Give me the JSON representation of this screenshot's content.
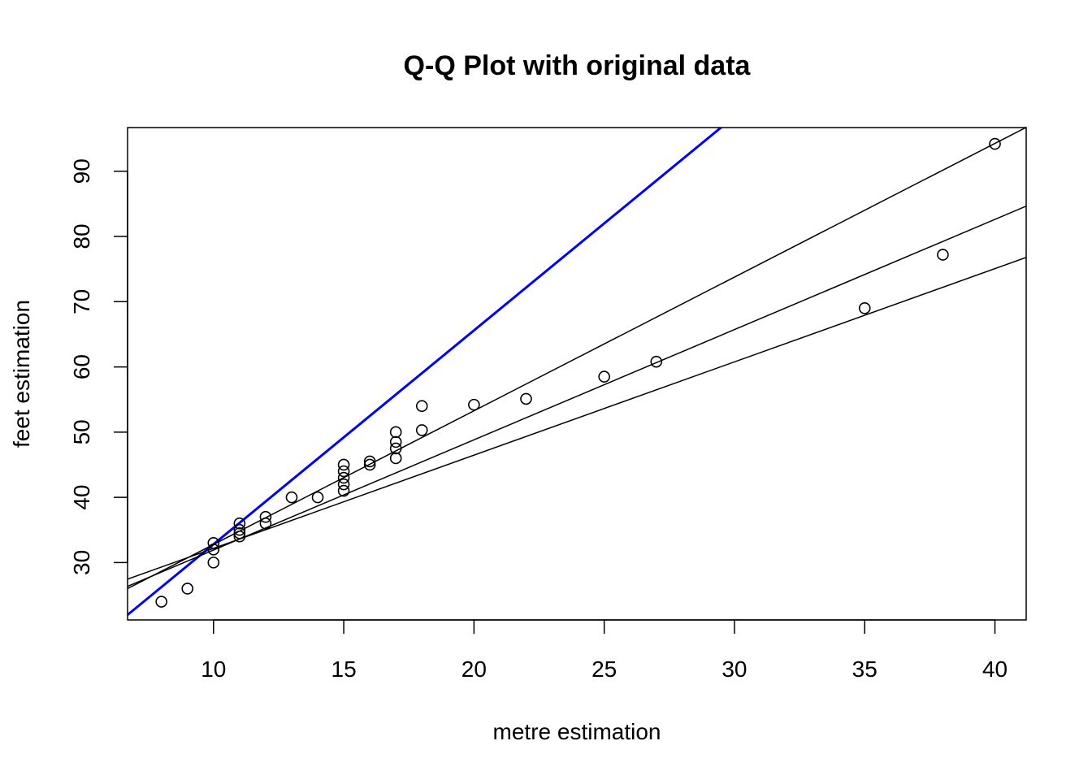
{
  "chart_data": {
    "type": "scatter",
    "title": "Q-Q Plot with original data",
    "xlabel": "metre estimation",
    "ylabel": "feet estimation",
    "xlim": [
      6.7,
      41.2
    ],
    "ylim": [
      21.2,
      96.7
    ],
    "xticks": [
      10,
      15,
      20,
      25,
      30,
      35,
      40
    ],
    "yticks": [
      30,
      40,
      50,
      60,
      70,
      80,
      90
    ],
    "grid": false,
    "points": [
      {
        "x": 8,
        "y": 24
      },
      {
        "x": 9,
        "y": 26
      },
      {
        "x": 10,
        "y": 30
      },
      {
        "x": 10,
        "y": 32
      },
      {
        "x": 10,
        "y": 33
      },
      {
        "x": 11,
        "y": 34
      },
      {
        "x": 11,
        "y": 34.5
      },
      {
        "x": 11,
        "y": 35
      },
      {
        "x": 11,
        "y": 36
      },
      {
        "x": 12,
        "y": 36
      },
      {
        "x": 12,
        "y": 37
      },
      {
        "x": 13,
        "y": 40
      },
      {
        "x": 14,
        "y": 40
      },
      {
        "x": 15,
        "y": 41
      },
      {
        "x": 15,
        "y": 42
      },
      {
        "x": 15,
        "y": 43
      },
      {
        "x": 15,
        "y": 44
      },
      {
        "x": 15,
        "y": 45
      },
      {
        "x": 16,
        "y": 45
      },
      {
        "x": 16,
        "y": 45.5
      },
      {
        "x": 17,
        "y": 46
      },
      {
        "x": 17,
        "y": 47.5
      },
      {
        "x": 17,
        "y": 48.5
      },
      {
        "x": 17,
        "y": 50
      },
      {
        "x": 18,
        "y": 50.3
      },
      {
        "x": 18,
        "y": 54
      },
      {
        "x": 20,
        "y": 54.2
      },
      {
        "x": 22,
        "y": 55.1
      },
      {
        "x": 25,
        "y": 58.5
      },
      {
        "x": 27,
        "y": 60.8
      },
      {
        "x": 35,
        "y": 69
      },
      {
        "x": 38,
        "y": 77.2
      },
      {
        "x": 40,
        "y": 94.2
      }
    ],
    "lines": [
      {
        "intercept": 0,
        "slope": 3.28,
        "color": "#0000FF",
        "width": 3
      },
      {
        "intercept": 12.27,
        "slope": 2.05,
        "color": "#000000",
        "width": 1.5
      },
      {
        "intercept": 15.02,
        "slope": 1.69,
        "color": "#000000",
        "width": 1.5
      },
      {
        "intercept": 17.87,
        "slope": 1.43,
        "color": "#000000",
        "width": 1.5
      }
    ]
  }
}
